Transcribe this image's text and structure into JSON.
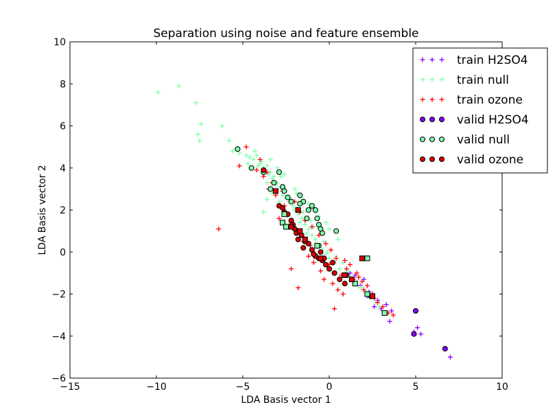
{
  "chart_data": {
    "type": "scatter",
    "title": "Separation using noise and feature ensemble",
    "xlabel": "LDA Basis vector 1",
    "ylabel": "LDA Basis vector 2",
    "xlim": [
      -15,
      10
    ],
    "ylim": [
      -6,
      10
    ],
    "xticks": [
      -15,
      -10,
      -5,
      0,
      5,
      10
    ],
    "yticks": [
      -6,
      -4,
      -2,
      0,
      2,
      4,
      6,
      8,
      10
    ],
    "xtick_labels": [
      "−15",
      "−10",
      "−5",
      "0",
      "5",
      "10"
    ],
    "ytick_labels": [
      "−6",
      "−4",
      "−2",
      "0",
      "2",
      "4",
      "6",
      "8",
      "10"
    ],
    "grid": false,
    "legend_position": "top-right",
    "series": [
      {
        "name": "train H2SO4",
        "marker": "plus",
        "color": "#8800ff",
        "points": [
          [
            7.0,
            -5.0
          ],
          [
            5.3,
            -3.9
          ],
          [
            5.1,
            -3.6
          ],
          [
            4.9,
            -3.8
          ],
          [
            3.5,
            -3.3
          ],
          [
            3.3,
            -2.5
          ],
          [
            3.0,
            -2.7
          ],
          [
            2.8,
            -2.3
          ],
          [
            2.5,
            -2.0
          ],
          [
            2.3,
            -1.9
          ],
          [
            2.0,
            -1.3
          ],
          [
            1.8,
            -1.6
          ],
          [
            1.5,
            -1.1
          ],
          [
            1.2,
            -1.0
          ],
          [
            2.6,
            -2.6
          ],
          [
            3.6,
            -2.8
          ],
          [
            2.2,
            -2.1
          ]
        ]
      },
      {
        "name": "train null",
        "marker": "plus",
        "color": "#7fffaa",
        "points": [
          [
            -9.9,
            7.6
          ],
          [
            -8.7,
            7.9
          ],
          [
            -7.7,
            7.1
          ],
          [
            -7.4,
            6.1
          ],
          [
            -7.6,
            5.6
          ],
          [
            -7.5,
            5.3
          ],
          [
            -6.2,
            6.0
          ],
          [
            -5.8,
            5.3
          ],
          [
            -5.6,
            4.8
          ],
          [
            -5.4,
            4.9
          ],
          [
            -5.2,
            4.7
          ],
          [
            -4.8,
            4.6
          ],
          [
            -4.6,
            4.5
          ],
          [
            -4.4,
            4.4
          ],
          [
            -4.2,
            4.6
          ],
          [
            -4.0,
            4.2
          ],
          [
            -3.8,
            4.0
          ],
          [
            -3.6,
            4.1
          ],
          [
            -3.4,
            3.8
          ],
          [
            -3.3,
            3.5
          ],
          [
            -3.2,
            3.6
          ],
          [
            -3.0,
            3.3
          ],
          [
            -2.8,
            3.1
          ],
          [
            -2.6,
            2.9
          ],
          [
            -2.5,
            2.6
          ],
          [
            -2.3,
            2.4
          ],
          [
            -2.1,
            2.2
          ],
          [
            -2.0,
            2.0
          ],
          [
            -1.8,
            1.8
          ],
          [
            -1.6,
            1.6
          ],
          [
            -1.4,
            1.3
          ],
          [
            -1.2,
            1.1
          ],
          [
            -1.0,
            0.8
          ],
          [
            -0.8,
            0.6
          ],
          [
            -0.6,
            0.3
          ],
          [
            -0.4,
            0.1
          ],
          [
            -0.2,
            -0.1
          ],
          [
            0.0,
            -0.3
          ],
          [
            0.3,
            -0.5
          ],
          [
            0.6,
            -0.8
          ],
          [
            0.9,
            -1.0
          ],
          [
            1.2,
            -1.2
          ],
          [
            1.5,
            -1.5
          ],
          [
            1.8,
            -1.7
          ],
          [
            2.1,
            -1.9
          ],
          [
            2.4,
            -2.2
          ],
          [
            2.7,
            -2.4
          ],
          [
            -3.9,
            4.3
          ],
          [
            -3.7,
            3.9
          ],
          [
            -3.5,
            3.7
          ],
          [
            -4.1,
            4.1
          ],
          [
            -3.1,
            3.2
          ],
          [
            -2.7,
            2.7
          ],
          [
            -2.2,
            2.5
          ],
          [
            -1.9,
            2.1
          ],
          [
            -1.5,
            1.9
          ],
          [
            -1.1,
            1.5
          ],
          [
            -0.9,
            1.2
          ],
          [
            -0.5,
            0.9
          ],
          [
            -0.3,
            0.5
          ],
          [
            -4.5,
            4.0
          ],
          [
            -3.6,
            3.3
          ],
          [
            -3.3,
            2.8
          ],
          [
            -2.9,
            2.4
          ],
          [
            -3.8,
            1.9
          ],
          [
            -3.6,
            2.5
          ],
          [
            -2.4,
            1.7
          ],
          [
            -1.7,
            1.4
          ],
          [
            -1.3,
            0.9
          ],
          [
            -0.7,
            0.4
          ],
          [
            -0.1,
            0.0
          ],
          [
            0.4,
            -0.2
          ],
          [
            0.8,
            -0.5
          ],
          [
            1.1,
            -0.9
          ],
          [
            -4.3,
            4.8
          ],
          [
            -3.0,
            4.0
          ],
          [
            -2.6,
            3.7
          ],
          [
            -1.9,
            2.8
          ],
          [
            -1.2,
            2.3
          ],
          [
            -0.6,
            1.7
          ],
          [
            0.0,
            1.1
          ],
          [
            0.5,
            0.6
          ],
          [
            2.9,
            -2.6
          ],
          [
            3.2,
            -2.9
          ],
          [
            -4.7,
            4.2
          ],
          [
            -3.4,
            4.4
          ],
          [
            -2.8,
            3.6
          ],
          [
            -2.0,
            3.0
          ],
          [
            -1.6,
            2.6
          ],
          [
            -0.8,
            1.9
          ],
          [
            -0.2,
            1.4
          ]
        ]
      },
      {
        "name": "train ozone",
        "marker": "plus",
        "color": "#ff0000",
        "points": [
          [
            -6.4,
            1.1
          ],
          [
            -5.2,
            4.1
          ],
          [
            -4.8,
            5.0
          ],
          [
            -4.2,
            3.9
          ],
          [
            -3.8,
            3.6
          ],
          [
            -3.5,
            3.0
          ],
          [
            -3.1,
            2.7
          ],
          [
            -2.6,
            2.2
          ],
          [
            -2.2,
            -0.8
          ],
          [
            -1.8,
            -1.7
          ],
          [
            -1.5,
            0.5
          ],
          [
            -1.2,
            -0.2
          ],
          [
            -0.9,
            -0.5
          ],
          [
            -0.5,
            -0.9
          ],
          [
            -0.3,
            -1.3
          ],
          [
            0.2,
            -1.5
          ],
          [
            0.5,
            -1.8
          ],
          [
            0.8,
            -2.0
          ],
          [
            0.3,
            -2.7
          ],
          [
            1.2,
            -0.6
          ],
          [
            1.6,
            -1.0
          ],
          [
            1.9,
            -1.4
          ],
          [
            2.2,
            -1.6
          ],
          [
            2.5,
            -2.0
          ],
          [
            2.8,
            -2.4
          ],
          [
            3.1,
            -2.6
          ],
          [
            3.4,
            -2.9
          ],
          [
            3.7,
            -3.0
          ],
          [
            4.9,
            -3.9
          ],
          [
            -2.9,
            1.6
          ],
          [
            -2.3,
            1.3
          ],
          [
            -1.9,
            0.9
          ],
          [
            -1.1,
            0.3
          ],
          [
            -0.7,
            -0.2
          ],
          [
            0.0,
            -0.6
          ],
          [
            0.7,
            -1.1
          ],
          [
            1.4,
            -1.3
          ],
          [
            -3.3,
            3.3
          ],
          [
            -2.7,
            2.9
          ],
          [
            -2.0,
            2.4
          ],
          [
            -1.4,
            1.5
          ],
          [
            -0.6,
            0.8
          ],
          [
            0.1,
            0.1
          ],
          [
            0.9,
            -0.4
          ],
          [
            -4.0,
            4.4
          ],
          [
            -3.6,
            3.8
          ],
          [
            -2.4,
            2.6
          ],
          [
            -1.7,
            1.9
          ],
          [
            -1.0,
            1.2
          ],
          [
            -0.2,
            0.4
          ],
          [
            0.4,
            -0.3
          ],
          [
            1.0,
            -0.8
          ],
          [
            1.7,
            -1.2
          ],
          [
            2.0,
            -1.8
          ],
          [
            2.6,
            -2.2
          ]
        ]
      },
      {
        "name": "valid H2SO4",
        "marker": "circle",
        "color": "#8800ff",
        "points": [
          [
            6.7,
            -4.6
          ],
          [
            5.0,
            -2.8
          ],
          [
            4.9,
            -3.9
          ],
          [
            2.4,
            -2.1
          ],
          [
            1.0,
            -1.1
          ]
        ]
      },
      {
        "name": "valid null",
        "marker": "circle",
        "color": "#7fffaa",
        "points": [
          [
            -5.3,
            4.9
          ],
          [
            -4.5,
            4.0
          ],
          [
            -3.8,
            3.8
          ],
          [
            -3.4,
            3.0
          ],
          [
            -3.2,
            3.3
          ],
          [
            -2.9,
            3.8
          ],
          [
            -2.7,
            3.1
          ],
          [
            -2.6,
            2.9
          ],
          [
            -2.4,
            2.6
          ],
          [
            -2.2,
            2.4
          ],
          [
            -1.7,
            2.7
          ],
          [
            -1.5,
            2.4
          ],
          [
            -1.2,
            2.0
          ],
          [
            -1.0,
            2.2
          ],
          [
            -0.8,
            2.0
          ],
          [
            -0.7,
            1.6
          ],
          [
            -0.6,
            1.3
          ],
          [
            -0.5,
            1.1
          ],
          [
            -0.4,
            0.9
          ],
          [
            0.4,
            1.0
          ],
          [
            -1.7,
            2.3
          ],
          [
            -1.3,
            1.6
          ],
          [
            -1.8,
            2.0
          ],
          [
            -0.6,
            0.3
          ]
        ]
      },
      {
        "name": "valid ozone",
        "marker": "circle",
        "color": "#dd0000",
        "points": [
          [
            -3.8,
            3.9
          ],
          [
            -2.9,
            2.2
          ],
          [
            -2.7,
            2.1
          ],
          [
            -2.4,
            1.8
          ],
          [
            -2.2,
            1.5
          ],
          [
            -2.0,
            1.1
          ],
          [
            -1.9,
            0.9
          ],
          [
            -1.8,
            0.6
          ],
          [
            -1.6,
            0.8
          ],
          [
            -1.5,
            0.2
          ],
          [
            -1.2,
            0.4
          ],
          [
            -1.0,
            0.1
          ],
          [
            -0.8,
            -0.2
          ],
          [
            -0.6,
            -0.3
          ],
          [
            -0.5,
            0.0
          ],
          [
            -0.4,
            -0.4
          ],
          [
            -0.2,
            -0.6
          ],
          [
            0.0,
            -0.8
          ],
          [
            0.3,
            -1.0
          ],
          [
            0.6,
            -1.3
          ],
          [
            0.9,
            -1.5
          ],
          [
            -2.6,
            1.9
          ],
          [
            -2.1,
            1.3
          ],
          [
            -1.4,
            0.5
          ],
          [
            -0.9,
            -0.1
          ],
          [
            -0.3,
            -0.3
          ],
          [
            0.2,
            -0.5
          ]
        ]
      },
      {
        "name": "",
        "marker": "square",
        "color": "#7fffaa",
        "points": [
          [
            -2.7,
            1.4
          ],
          [
            -2.5,
            1.2
          ],
          [
            -2.6,
            1.8
          ],
          [
            2.2,
            -2.0
          ],
          [
            3.2,
            -2.9
          ],
          [
            2.2,
            -0.3
          ],
          [
            1.5,
            -1.5
          ],
          [
            -0.7,
            0.3
          ]
        ]
      },
      {
        "name": "",
        "marker": "square",
        "color": "#dd0000",
        "points": [
          [
            -3.1,
            2.9
          ],
          [
            -1.8,
            2.0
          ],
          [
            -2.2,
            1.2
          ],
          [
            -1.7,
            1.0
          ],
          [
            0.9,
            -1.1
          ],
          [
            1.9,
            -0.3
          ],
          [
            1.3,
            -1.3
          ],
          [
            2.5,
            -2.1
          ],
          [
            -1.4,
            0.6
          ],
          [
            -0.5,
            -0.3
          ]
        ]
      }
    ]
  }
}
